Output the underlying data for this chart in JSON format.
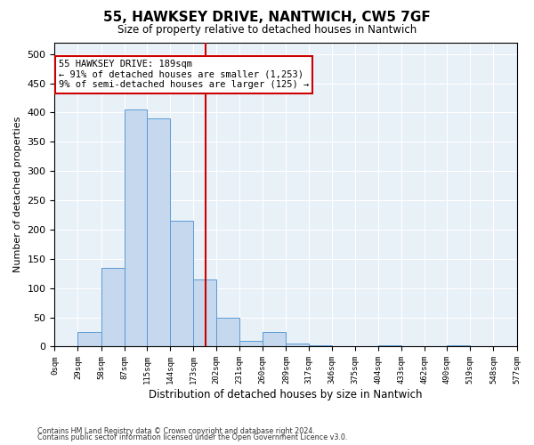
{
  "title1": "55, HAWKSEY DRIVE, NANTWICH, CW5 7GF",
  "title2": "Size of property relative to detached houses in Nantwich",
  "xlabel": "Distribution of detached houses by size in Nantwich",
  "ylabel": "Number of detached properties",
  "bin_edges": [
    0,
    29,
    58,
    87,
    115,
    144,
    173,
    202,
    231,
    260,
    289,
    317,
    346,
    375,
    404,
    433,
    462,
    490,
    519,
    548,
    577
  ],
  "bar_heights": [
    0,
    25,
    135,
    405,
    390,
    215,
    115,
    50,
    10,
    25,
    5,
    2,
    0,
    0,
    2,
    0,
    0,
    2,
    0,
    0
  ],
  "bar_color": "#c5d8ed",
  "bar_edge_color": "#5b9bd5",
  "property_size": 189,
  "annotation_text": "55 HAWKSEY DRIVE: 189sqm\n← 91% of detached houses are smaller (1,253)\n9% of semi-detached houses are larger (125) →",
  "annotation_box_color": "#ffffff",
  "annotation_box_edge_color": "#cc0000",
  "vline_color": "#cc0000",
  "ylim": [
    0,
    520
  ],
  "yticks": [
    0,
    50,
    100,
    150,
    200,
    250,
    300,
    350,
    400,
    450,
    500
  ],
  "footer1": "Contains HM Land Registry data © Crown copyright and database right 2024.",
  "footer2": "Contains public sector information licensed under the Open Government Licence v3.0.",
  "fig_bg_color": "#ffffff",
  "plot_bg_color": "#e8f0f8"
}
